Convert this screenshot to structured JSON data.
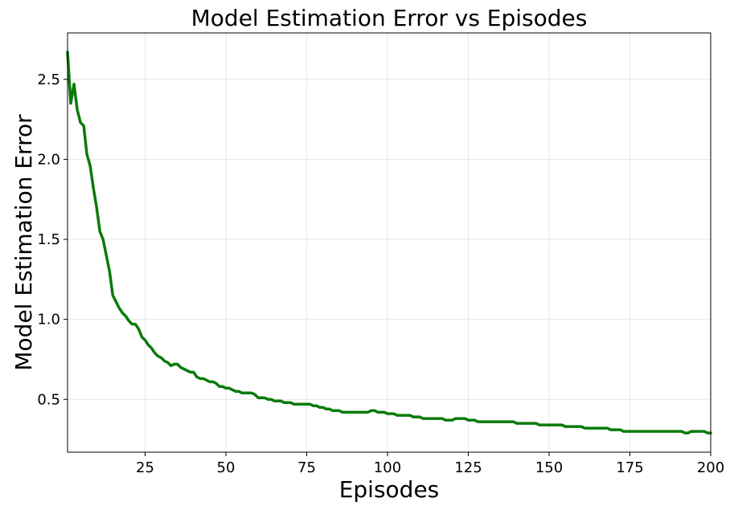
{
  "chart_data": {
    "type": "line",
    "title": "Model Estimation Error vs Episodes",
    "xlabel": "Episodes",
    "ylabel": "Model Estimation Error",
    "xlim": [
      1,
      200
    ],
    "ylim": [
      0.17,
      2.79
    ],
    "grid": true,
    "legend": "none",
    "xticks": [
      25,
      50,
      75,
      100,
      125,
      150,
      175,
      200
    ],
    "yticks": [
      0.5,
      1.0,
      1.5,
      2.0,
      2.5
    ],
    "xtick_labels": [
      "25",
      "50",
      "75",
      "100",
      "125",
      "150",
      "175",
      "200"
    ],
    "ytick_labels": [
      "0.5",
      "1.0",
      "1.5",
      "2.0",
      "2.5"
    ],
    "series": [
      {
        "color": "#0a7a0a",
        "points": [
          [
            1,
            2.67
          ],
          [
            2,
            2.35
          ],
          [
            3,
            2.47
          ],
          [
            4,
            2.31
          ],
          [
            5,
            2.23
          ],
          [
            6,
            2.21
          ],
          [
            7,
            2.03
          ],
          [
            8,
            1.96
          ],
          [
            9,
            1.82
          ],
          [
            10,
            1.7
          ],
          [
            11,
            1.55
          ],
          [
            12,
            1.5
          ],
          [
            13,
            1.4
          ],
          [
            14,
            1.3
          ],
          [
            15,
            1.15
          ],
          [
            16,
            1.11
          ],
          [
            17,
            1.07
          ],
          [
            18,
            1.04
          ],
          [
            19,
            1.02
          ],
          [
            20,
            0.99
          ],
          [
            21,
            0.97
          ],
          [
            22,
            0.97
          ],
          [
            23,
            0.94
          ],
          [
            24,
            0.89
          ],
          [
            25,
            0.87
          ],
          [
            26,
            0.84
          ],
          [
            27,
            0.82
          ],
          [
            28,
            0.79
          ],
          [
            29,
            0.77
          ],
          [
            30,
            0.76
          ],
          [
            31,
            0.74
          ],
          [
            32,
            0.73
          ],
          [
            33,
            0.71
          ],
          [
            34,
            0.72
          ],
          [
            35,
            0.72
          ],
          [
            36,
            0.7
          ],
          [
            37,
            0.69
          ],
          [
            38,
            0.68
          ],
          [
            39,
            0.67
          ],
          [
            40,
            0.67
          ],
          [
            41,
            0.64
          ],
          [
            42,
            0.63
          ],
          [
            43,
            0.63
          ],
          [
            44,
            0.62
          ],
          [
            45,
            0.61
          ],
          [
            46,
            0.61
          ],
          [
            47,
            0.6
          ],
          [
            48,
            0.58
          ],
          [
            49,
            0.58
          ],
          [
            50,
            0.57
          ],
          [
            51,
            0.57
          ],
          [
            52,
            0.56
          ],
          [
            53,
            0.55
          ],
          [
            54,
            0.55
          ],
          [
            55,
            0.54
          ],
          [
            56,
            0.54
          ],
          [
            57,
            0.54
          ],
          [
            58,
            0.54
          ],
          [
            59,
            0.53
          ],
          [
            60,
            0.51
          ],
          [
            61,
            0.51
          ],
          [
            62,
            0.51
          ],
          [
            63,
            0.5
          ],
          [
            64,
            0.5
          ],
          [
            65,
            0.49
          ],
          [
            66,
            0.49
          ],
          [
            67,
            0.49
          ],
          [
            68,
            0.48
          ],
          [
            69,
            0.48
          ],
          [
            70,
            0.48
          ],
          [
            71,
            0.47
          ],
          [
            72,
            0.47
          ],
          [
            73,
            0.47
          ],
          [
            74,
            0.47
          ],
          [
            75,
            0.47
          ],
          [
            76,
            0.47
          ],
          [
            77,
            0.46
          ],
          [
            78,
            0.46
          ],
          [
            79,
            0.45
          ],
          [
            80,
            0.45
          ],
          [
            81,
            0.44
          ],
          [
            82,
            0.44
          ],
          [
            83,
            0.43
          ],
          [
            84,
            0.43
          ],
          [
            85,
            0.43
          ],
          [
            86,
            0.42
          ],
          [
            87,
            0.42
          ],
          [
            88,
            0.42
          ],
          [
            89,
            0.42
          ],
          [
            90,
            0.42
          ],
          [
            91,
            0.42
          ],
          [
            92,
            0.42
          ],
          [
            93,
            0.42
          ],
          [
            94,
            0.42
          ],
          [
            95,
            0.43
          ],
          [
            96,
            0.43
          ],
          [
            97,
            0.42
          ],
          [
            98,
            0.42
          ],
          [
            99,
            0.42
          ],
          [
            100,
            0.41
          ],
          [
            101,
            0.41
          ],
          [
            102,
            0.41
          ],
          [
            103,
            0.4
          ],
          [
            104,
            0.4
          ],
          [
            105,
            0.4
          ],
          [
            106,
            0.4
          ],
          [
            107,
            0.4
          ],
          [
            108,
            0.39
          ],
          [
            109,
            0.39
          ],
          [
            110,
            0.39
          ],
          [
            111,
            0.38
          ],
          [
            112,
            0.38
          ],
          [
            113,
            0.38
          ],
          [
            114,
            0.38
          ],
          [
            115,
            0.38
          ],
          [
            116,
            0.38
          ],
          [
            117,
            0.38
          ],
          [
            118,
            0.37
          ],
          [
            119,
            0.37
          ],
          [
            120,
            0.37
          ],
          [
            121,
            0.38
          ],
          [
            122,
            0.38
          ],
          [
            123,
            0.38
          ],
          [
            124,
            0.38
          ],
          [
            125,
            0.37
          ],
          [
            126,
            0.37
          ],
          [
            127,
            0.37
          ],
          [
            128,
            0.36
          ],
          [
            129,
            0.36
          ],
          [
            130,
            0.36
          ],
          [
            131,
            0.36
          ],
          [
            132,
            0.36
          ],
          [
            133,
            0.36
          ],
          [
            134,
            0.36
          ],
          [
            135,
            0.36
          ],
          [
            136,
            0.36
          ],
          [
            137,
            0.36
          ],
          [
            138,
            0.36
          ],
          [
            139,
            0.36
          ],
          [
            140,
            0.35
          ],
          [
            141,
            0.35
          ],
          [
            142,
            0.35
          ],
          [
            143,
            0.35
          ],
          [
            144,
            0.35
          ],
          [
            145,
            0.35
          ],
          [
            146,
            0.35
          ],
          [
            147,
            0.34
          ],
          [
            148,
            0.34
          ],
          [
            149,
            0.34
          ],
          [
            150,
            0.34
          ],
          [
            151,
            0.34
          ],
          [
            152,
            0.34
          ],
          [
            153,
            0.34
          ],
          [
            154,
            0.34
          ],
          [
            155,
            0.33
          ],
          [
            156,
            0.33
          ],
          [
            157,
            0.33
          ],
          [
            158,
            0.33
          ],
          [
            159,
            0.33
          ],
          [
            160,
            0.33
          ],
          [
            161,
            0.32
          ],
          [
            162,
            0.32
          ],
          [
            163,
            0.32
          ],
          [
            164,
            0.32
          ],
          [
            165,
            0.32
          ],
          [
            166,
            0.32
          ],
          [
            167,
            0.32
          ],
          [
            168,
            0.32
          ],
          [
            169,
            0.31
          ],
          [
            170,
            0.31
          ],
          [
            171,
            0.31
          ],
          [
            172,
            0.31
          ],
          [
            173,
            0.3
          ],
          [
            174,
            0.3
          ],
          [
            175,
            0.3
          ],
          [
            176,
            0.3
          ],
          [
            177,
            0.3
          ],
          [
            178,
            0.3
          ],
          [
            179,
            0.3
          ],
          [
            180,
            0.3
          ],
          [
            181,
            0.3
          ],
          [
            182,
            0.3
          ],
          [
            183,
            0.3
          ],
          [
            184,
            0.3
          ],
          [
            185,
            0.3
          ],
          [
            186,
            0.3
          ],
          [
            187,
            0.3
          ],
          [
            188,
            0.3
          ],
          [
            189,
            0.3
          ],
          [
            190,
            0.3
          ],
          [
            191,
            0.3
          ],
          [
            192,
            0.29
          ],
          [
            193,
            0.29
          ],
          [
            194,
            0.3
          ],
          [
            195,
            0.3
          ],
          [
            196,
            0.3
          ],
          [
            197,
            0.3
          ],
          [
            198,
            0.3
          ],
          [
            199,
            0.29
          ],
          [
            200,
            0.29
          ]
        ]
      }
    ]
  }
}
